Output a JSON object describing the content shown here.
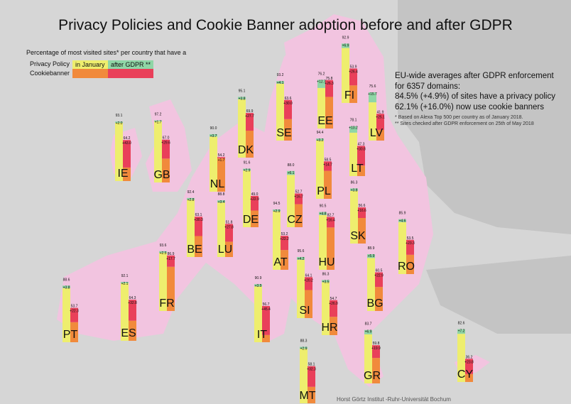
{
  "chart_data": {
    "type": "bar",
    "title": "Privacy Policies and Cookie Banner adoption before and after GDPR",
    "ylim": [
      0,
      100
    ],
    "legend": {
      "caption": "Percentage of most visited sites* per country that have a",
      "privacy_label": "Privacy Policy",
      "cookie_label": "Cookiebanner",
      "january_label": "in January",
      "after_label": "after GDPR **"
    },
    "summary": {
      "line1": "EU-wide averages after GDPR enforcement",
      "line2": "for 6357 domains:",
      "line3": "84.5% (+4.9%) of sites have a privacy policy",
      "line4": "62.1% (+16.0%) now use cookie banners",
      "note1": "* Based on Alexa Top 500 per country as of January 2018.",
      "note2": "** Sites checked after GDPR enforcement on 25th of May 2018"
    },
    "credit": "Horst Görtz Institut -Ruhr-Universität Bochum",
    "colors": {
      "privacy_january": "#eeee6e",
      "privacy_increase": "#8fd6a6",
      "cookie_january": "#f18a3c",
      "cookie_increase": "#e9405a"
    },
    "countries": [
      {
        "code": "FI",
        "privacy": "92.9",
        "privacy_inc": "+6.9",
        "cookie": "53.9",
        "cookie_inc": "+26.4"
      },
      {
        "code": "EE",
        "privacy": "76.2",
        "privacy_inc": "+12.7",
        "cookie": "75.8",
        "cookie_inc": "+26.3"
      },
      {
        "code": "SE",
        "privacy": "93.2",
        "privacy_inc": "+4.1",
        "cookie": "63.6",
        "cookie_inc": "+30.0"
      },
      {
        "code": "LV",
        "privacy": "75.6",
        "privacy_inc": "+15.7",
        "cookie": "41.9",
        "cookie_inc": "+25.1"
      },
      {
        "code": "DK",
        "privacy": "95.1",
        "privacy_inc": "+3.8",
        "cookie": "69.9",
        "cookie_inc": "+27.7"
      },
      {
        "code": "IE",
        "privacy": "93.1",
        "privacy_inc": "+2.0",
        "cookie": "64.2",
        "cookie_inc": "+43.0"
      },
      {
        "code": "GB",
        "privacy": "97.2",
        "privacy_inc": "+1.7",
        "cookie": "67.0",
        "cookie_inc": "+29.6"
      },
      {
        "code": "NL",
        "privacy": "90.0",
        "privacy_inc": "+3.7",
        "cookie": "54.2",
        "cookie_inc": "+1.7"
      },
      {
        "code": "LT",
        "privacy": "78.1",
        "privacy_inc": "+10.2",
        "cookie": "47.3",
        "cookie_inc": "+30.8"
      },
      {
        "code": "PL",
        "privacy": "94.4",
        "privacy_inc": "+3.2",
        "cookie": "58.5",
        "cookie_inc": "+14.7"
      },
      {
        "code": "DE",
        "privacy": "91.6",
        "privacy_inc": "+2.9",
        "cookie": "49.0",
        "cookie_inc": "+22.9"
      },
      {
        "code": "CZ",
        "privacy": "88.0",
        "privacy_inc": "+6.1",
        "cookie": "52.7",
        "cookie_inc": "+16.7"
      },
      {
        "code": "SK",
        "privacy": "86.3",
        "privacy_inc": "+3.8",
        "cookie": "56.6",
        "cookie_inc": "+16.6"
      },
      {
        "code": "BE",
        "privacy": "92.4",
        "privacy_inc": "+2.8",
        "cookie": "63.1",
        "cookie_inc": "+30.3"
      },
      {
        "code": "LU",
        "privacy": "88.8",
        "privacy_inc": "+3.4",
        "cookie": "51.8",
        "cookie_inc": "+27.8"
      },
      {
        "code": "AT",
        "privacy": "94.5",
        "privacy_inc": "+2.9",
        "cookie": "53.2",
        "cookie_inc": "+22.2"
      },
      {
        "code": "HU",
        "privacy": "90.5",
        "privacy_inc": "+4.8",
        "cookie": "82.7",
        "cookie_inc": "+16.4"
      },
      {
        "code": "RO",
        "privacy": "85.9",
        "privacy_inc": "+4.6",
        "cookie": "53.5",
        "cookie_inc": "+23.3"
      },
      {
        "code": "FR",
        "privacy": "93.6",
        "privacy_inc": "+2.5",
        "cookie": "86.9",
        "cookie_inc": "+17.7"
      },
      {
        "code": "SI",
        "privacy": "95.6",
        "privacy_inc": "+4.2",
        "cookie": "64.1",
        "cookie_inc": "+20.2"
      },
      {
        "code": "BG",
        "privacy": "88.9",
        "privacy_inc": "+5.9",
        "cookie": "60.5",
        "cookie_inc": "+22.9"
      },
      {
        "code": "PT",
        "privacy": "88.6",
        "privacy_inc": "+3.8",
        "cookie": "53.7",
        "cookie_inc": "+22.3"
      },
      {
        "code": "ES",
        "privacy": "92.1",
        "privacy_inc": "+2.1",
        "cookie": "64.3",
        "cookie_inc": "+32.8"
      },
      {
        "code": "IT",
        "privacy": "90.9",
        "privacy_inc": "+3.5",
        "cookie": "56.7",
        "cookie_inc": "+45.4"
      },
      {
        "code": "HR",
        "privacy": "86.3",
        "privacy_inc": "+3.5",
        "cookie": "54.7",
        "cookie_inc": "+26.0"
      },
      {
        "code": "GR",
        "privacy": "83.7",
        "privacy_inc": "+6.9",
        "cookie": "59.8",
        "cookie_inc": "+19.9"
      },
      {
        "code": "CY",
        "privacy": "82.6",
        "privacy_inc": "+7.2",
        "cookie": "36.2",
        "cookie_inc": "+23.8"
      },
      {
        "code": "MT",
        "privacy": "88.3",
        "privacy_inc": "+2.9",
        "cookie": "58.1",
        "cookie_inc": "+32.3"
      }
    ]
  }
}
